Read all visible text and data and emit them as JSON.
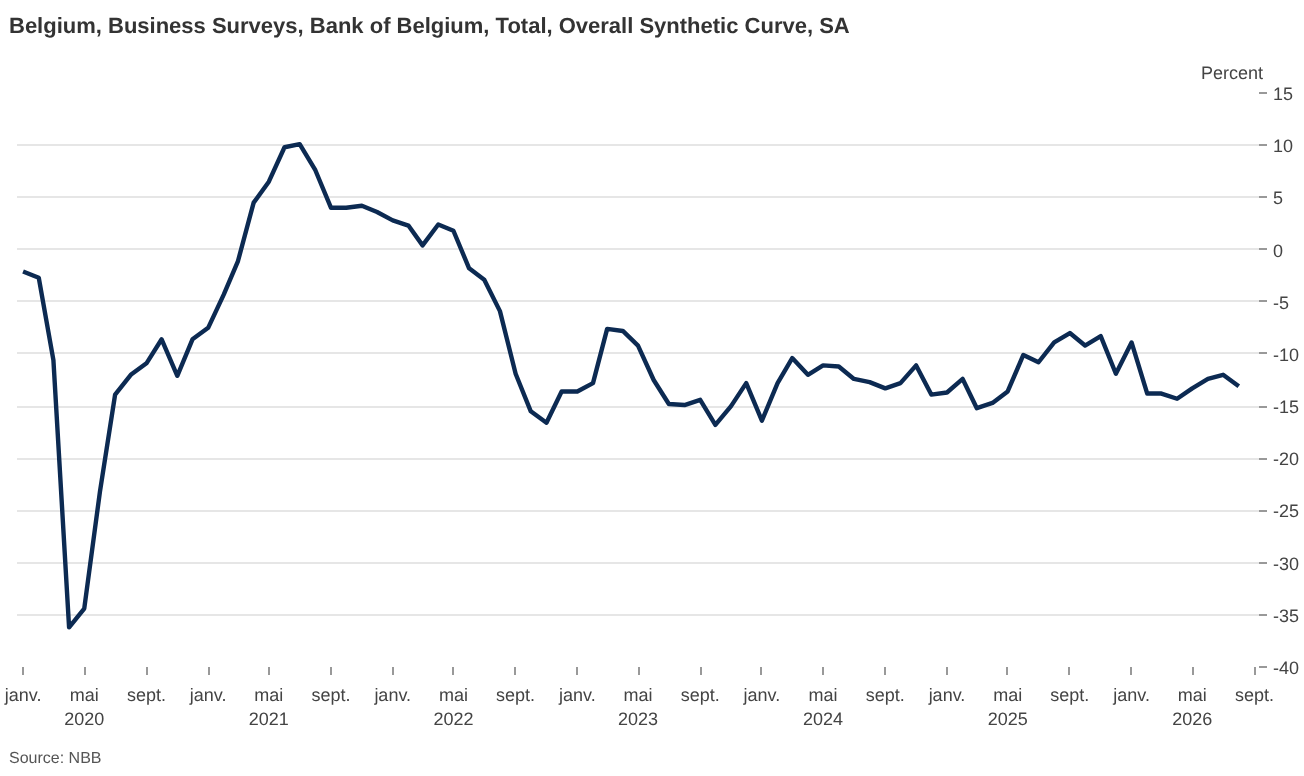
{
  "chart_data": {
    "type": "line",
    "title": "Belgium, Business Surveys, Bank of Belgium, Total, Overall Synthetic Curve, SA",
    "ylabel": "Percent",
    "annotations": [
      "Source: NBB"
    ],
    "x": [
      "2020-01",
      "2020-02",
      "2020-03",
      "2020-04",
      "2020-05",
      "2020-06",
      "2020-07",
      "2020-08",
      "2020-09",
      "2020-10",
      "2020-11",
      "2020-12",
      "2021-01",
      "2021-02",
      "2021-03",
      "2021-04",
      "2021-05",
      "2021-06",
      "2021-07",
      "2021-08",
      "2021-09",
      "2021-10",
      "2021-11",
      "2021-12",
      "2022-01",
      "2022-02",
      "2022-03",
      "2022-04",
      "2022-05",
      "2022-06",
      "2022-07",
      "2022-08",
      "2022-09",
      "2022-10",
      "2022-11",
      "2022-12",
      "2023-01",
      "2023-02",
      "2023-03",
      "2023-04",
      "2023-05",
      "2023-06",
      "2023-07",
      "2023-08",
      "2023-09",
      "2023-10",
      "2023-11",
      "2023-12",
      "2024-01",
      "2024-02",
      "2024-03",
      "2024-04",
      "2024-05",
      "2024-06",
      "2024-07",
      "2024-08",
      "2024-09",
      "2024-10",
      "2024-11",
      "2024-12",
      "2025-01",
      "2025-02",
      "2025-03",
      "2025-04",
      "2025-05",
      "2025-06",
      "2025-07",
      "2025-08",
      "2025-09",
      "2025-10",
      "2025-11",
      "2025-12",
      "2026-01",
      "2026-02",
      "2026-03",
      "2026-04",
      "2026-05",
      "2026-06",
      "2026-07",
      "2026-08"
    ],
    "series": [
      {
        "color": "#0c2a52",
        "values": [
          -2.1,
          -2.7,
          -10.6,
          -36.2,
          -34.4,
          -23.2,
          -13.9,
          -12.0,
          -10.9,
          -8.6,
          -12.1,
          -8.6,
          -7.5,
          -4.3,
          -1.1,
          4.5,
          6.5,
          9.8,
          10.1,
          7.6,
          4.0,
          4.0,
          4.2,
          3.6,
          2.8,
          2.3,
          0.4,
          2.4,
          1.8,
          -1.8,
          -2.9,
          -5.9,
          -11.9,
          -15.5,
          -16.6,
          -13.6,
          -13.6,
          -12.8,
          -7.6,
          -7.8,
          -9.2,
          -12.5,
          -14.8,
          -14.9,
          -14.4,
          -16.8,
          -15.0,
          -12.8,
          -16.4,
          -12.8,
          -10.4,
          -12.0,
          -11.1,
          -11.2,
          -12.4,
          -12.7,
          -13.3,
          -12.8,
          -11.1,
          -13.9,
          -13.7,
          -12.4,
          -15.2,
          -14.7,
          -13.6,
          -10.1,
          -10.8,
          -8.9,
          -8.0,
          -9.2,
          -8.3,
          -11.9,
          -8.9,
          -13.8,
          -13.8,
          -14.3,
          -13.3,
          -12.4,
          -12.0,
          -13.1
        ]
      }
    ],
    "xlim": [
      "2019-12-20",
      "2026-09-10"
    ],
    "xticks": [
      {
        "value": "2020-01",
        "label": "janv."
      },
      {
        "value": "2020-05",
        "label": "mai\n2020"
      },
      {
        "value": "2020-09",
        "label": "sept."
      },
      {
        "value": "2021-01",
        "label": "janv."
      },
      {
        "value": "2021-05",
        "label": "mai\n2021"
      },
      {
        "value": "2021-09",
        "label": "sept."
      },
      {
        "value": "2022-01",
        "label": "janv."
      },
      {
        "value": "2022-05",
        "label": "mai\n2022"
      },
      {
        "value": "2022-09",
        "label": "sept."
      },
      {
        "value": "2023-01",
        "label": "janv."
      },
      {
        "value": "2023-05",
        "label": "mai\n2023"
      },
      {
        "value": "2023-09",
        "label": "sept."
      },
      {
        "value": "2024-01",
        "label": "janv."
      },
      {
        "value": "2024-05",
        "label": "mai\n2024"
      },
      {
        "value": "2024-09",
        "label": "sept."
      },
      {
        "value": "2025-01",
        "label": "janv."
      },
      {
        "value": "2025-05",
        "label": "mai\n2025"
      },
      {
        "value": "2025-09",
        "label": "sept."
      },
      {
        "value": "2026-01",
        "label": "janv."
      },
      {
        "value": "2026-05",
        "label": "mai\n2026"
      },
      {
        "value": "2026-09",
        "label": "sept."
      }
    ],
    "ylim": [
      -40,
      15
    ],
    "yticks": [
      -40,
      -35,
      -30,
      -25,
      -20,
      -15,
      -10,
      -5,
      0,
      5,
      10,
      15
    ],
    "grid": "y",
    "line_style": "solid",
    "marker": "none"
  }
}
